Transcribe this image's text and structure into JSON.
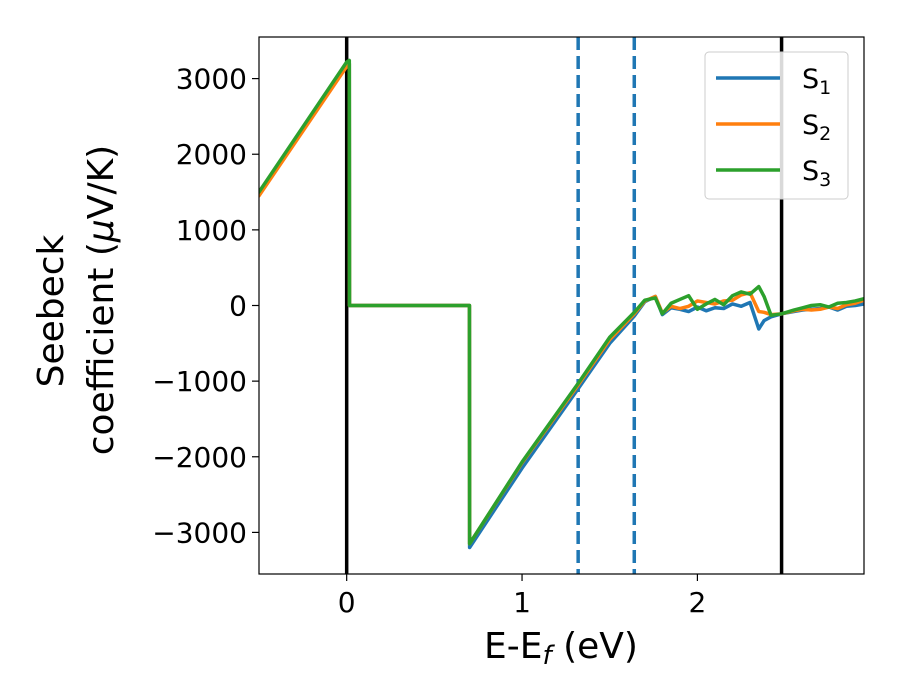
{
  "chart_data": {
    "type": "line",
    "title": "",
    "xlabel": {
      "main": "E-E",
      "sub": "f",
      "unit": " (eV)"
    },
    "ylabel": {
      "line1": "Seebeck",
      "line2_text": "coefficient  (",
      "line2_mu": "μ",
      "line2_unit": "V/K)"
    },
    "xlim": [
      -0.5,
      2.95
    ],
    "ylim": [
      -3550,
      3550
    ],
    "xticks": [
      0,
      1,
      2
    ],
    "xtick_labels": [
      "0",
      "1",
      "2"
    ],
    "yticks": [
      3000,
      2000,
      1000,
      0,
      -1000,
      -2000,
      -3000
    ],
    "ytick_labels": [
      "3000",
      "2000",
      "1000",
      "0",
      "−1000",
      "−2000",
      "−3000"
    ],
    "grid": false,
    "legend_position": "top-right",
    "colors": {
      "S1": "#1f77b4",
      "S2": "#ff7f0e",
      "S3": "#2ca02c",
      "vline_solid": "#000000",
      "vline_dashed": "#1f77b4"
    },
    "vlines": [
      {
        "x": 0.0,
        "style": "solid",
        "color": "#000000"
      },
      {
        "x": 2.48,
        "style": "solid",
        "color": "#000000"
      },
      {
        "x": 1.32,
        "style": "dashed",
        "color": "#1f77b4"
      },
      {
        "x": 1.64,
        "style": "dashed",
        "color": "#1f77b4"
      }
    ],
    "series": [
      {
        "name": "S1",
        "label_main": "S",
        "label_sub": "1",
        "color": "#1f77b4",
        "x": [
          -0.5,
          0.0,
          0.015,
          0.016,
          0.7,
          0.701,
          1.0,
          1.32,
          1.5,
          1.64,
          1.7,
          1.76,
          1.8,
          1.85,
          1.9,
          1.95,
          2.0,
          2.05,
          2.1,
          2.15,
          2.2,
          2.25,
          2.3,
          2.35,
          2.38,
          2.42,
          2.48,
          2.55,
          2.6,
          2.65,
          2.7,
          2.75,
          2.8,
          2.85,
          2.9,
          2.95
        ],
        "y": [
          1480,
          3200,
          3200,
          0,
          0,
          -3200,
          -2150,
          -1100,
          -500,
          -140,
          50,
          120,
          -120,
          -30,
          -50,
          -80,
          -20,
          -70,
          -30,
          -40,
          20,
          -10,
          40,
          -310,
          -200,
          -150,
          -110,
          -80,
          -60,
          -50,
          -40,
          -20,
          -60,
          -10,
          0,
          20
        ]
      },
      {
        "name": "S2",
        "label_main": "S",
        "label_sub": "2",
        "color": "#ff7f0e",
        "x": [
          -0.5,
          0.0,
          0.015,
          0.016,
          0.7,
          0.701,
          1.0,
          1.32,
          1.5,
          1.64,
          1.7,
          1.76,
          1.8,
          1.85,
          1.9,
          1.95,
          2.0,
          2.05,
          2.1,
          2.15,
          2.2,
          2.25,
          2.3,
          2.35,
          2.38,
          2.42,
          2.48,
          2.55,
          2.6,
          2.65,
          2.7,
          2.75,
          2.8,
          2.85,
          2.9,
          2.95
        ],
        "y": [
          1450,
          3160,
          3200,
          0,
          0,
          -3150,
          -2080,
          -1050,
          -450,
          -110,
          60,
          120,
          -100,
          -10,
          -40,
          -10,
          60,
          40,
          20,
          60,
          70,
          140,
          170,
          -80,
          -90,
          -120,
          -110,
          -70,
          -50,
          -60,
          -50,
          -20,
          -40,
          10,
          30,
          70
        ]
      },
      {
        "name": "S3",
        "label_main": "S",
        "label_sub": "3",
        "color": "#2ca02c",
        "x": [
          -0.5,
          0.0,
          0.015,
          0.016,
          0.7,
          0.701,
          1.0,
          1.32,
          1.5,
          1.64,
          1.7,
          1.76,
          1.8,
          1.85,
          1.9,
          1.95,
          2.0,
          2.05,
          2.1,
          2.15,
          2.2,
          2.25,
          2.3,
          2.35,
          2.38,
          2.42,
          2.48,
          2.55,
          2.6,
          2.65,
          2.7,
          2.75,
          2.8,
          2.85,
          2.9,
          2.95
        ],
        "y": [
          1500,
          3220,
          3240,
          0,
          0,
          -3150,
          -2070,
          -1030,
          -420,
          -90,
          70,
          100,
          -110,
          30,
          80,
          130,
          -50,
          20,
          80,
          10,
          130,
          180,
          150,
          250,
          120,
          -130,
          -110,
          -60,
          -30,
          0,
          10,
          -20,
          30,
          40,
          60,
          90
        ]
      }
    ]
  }
}
